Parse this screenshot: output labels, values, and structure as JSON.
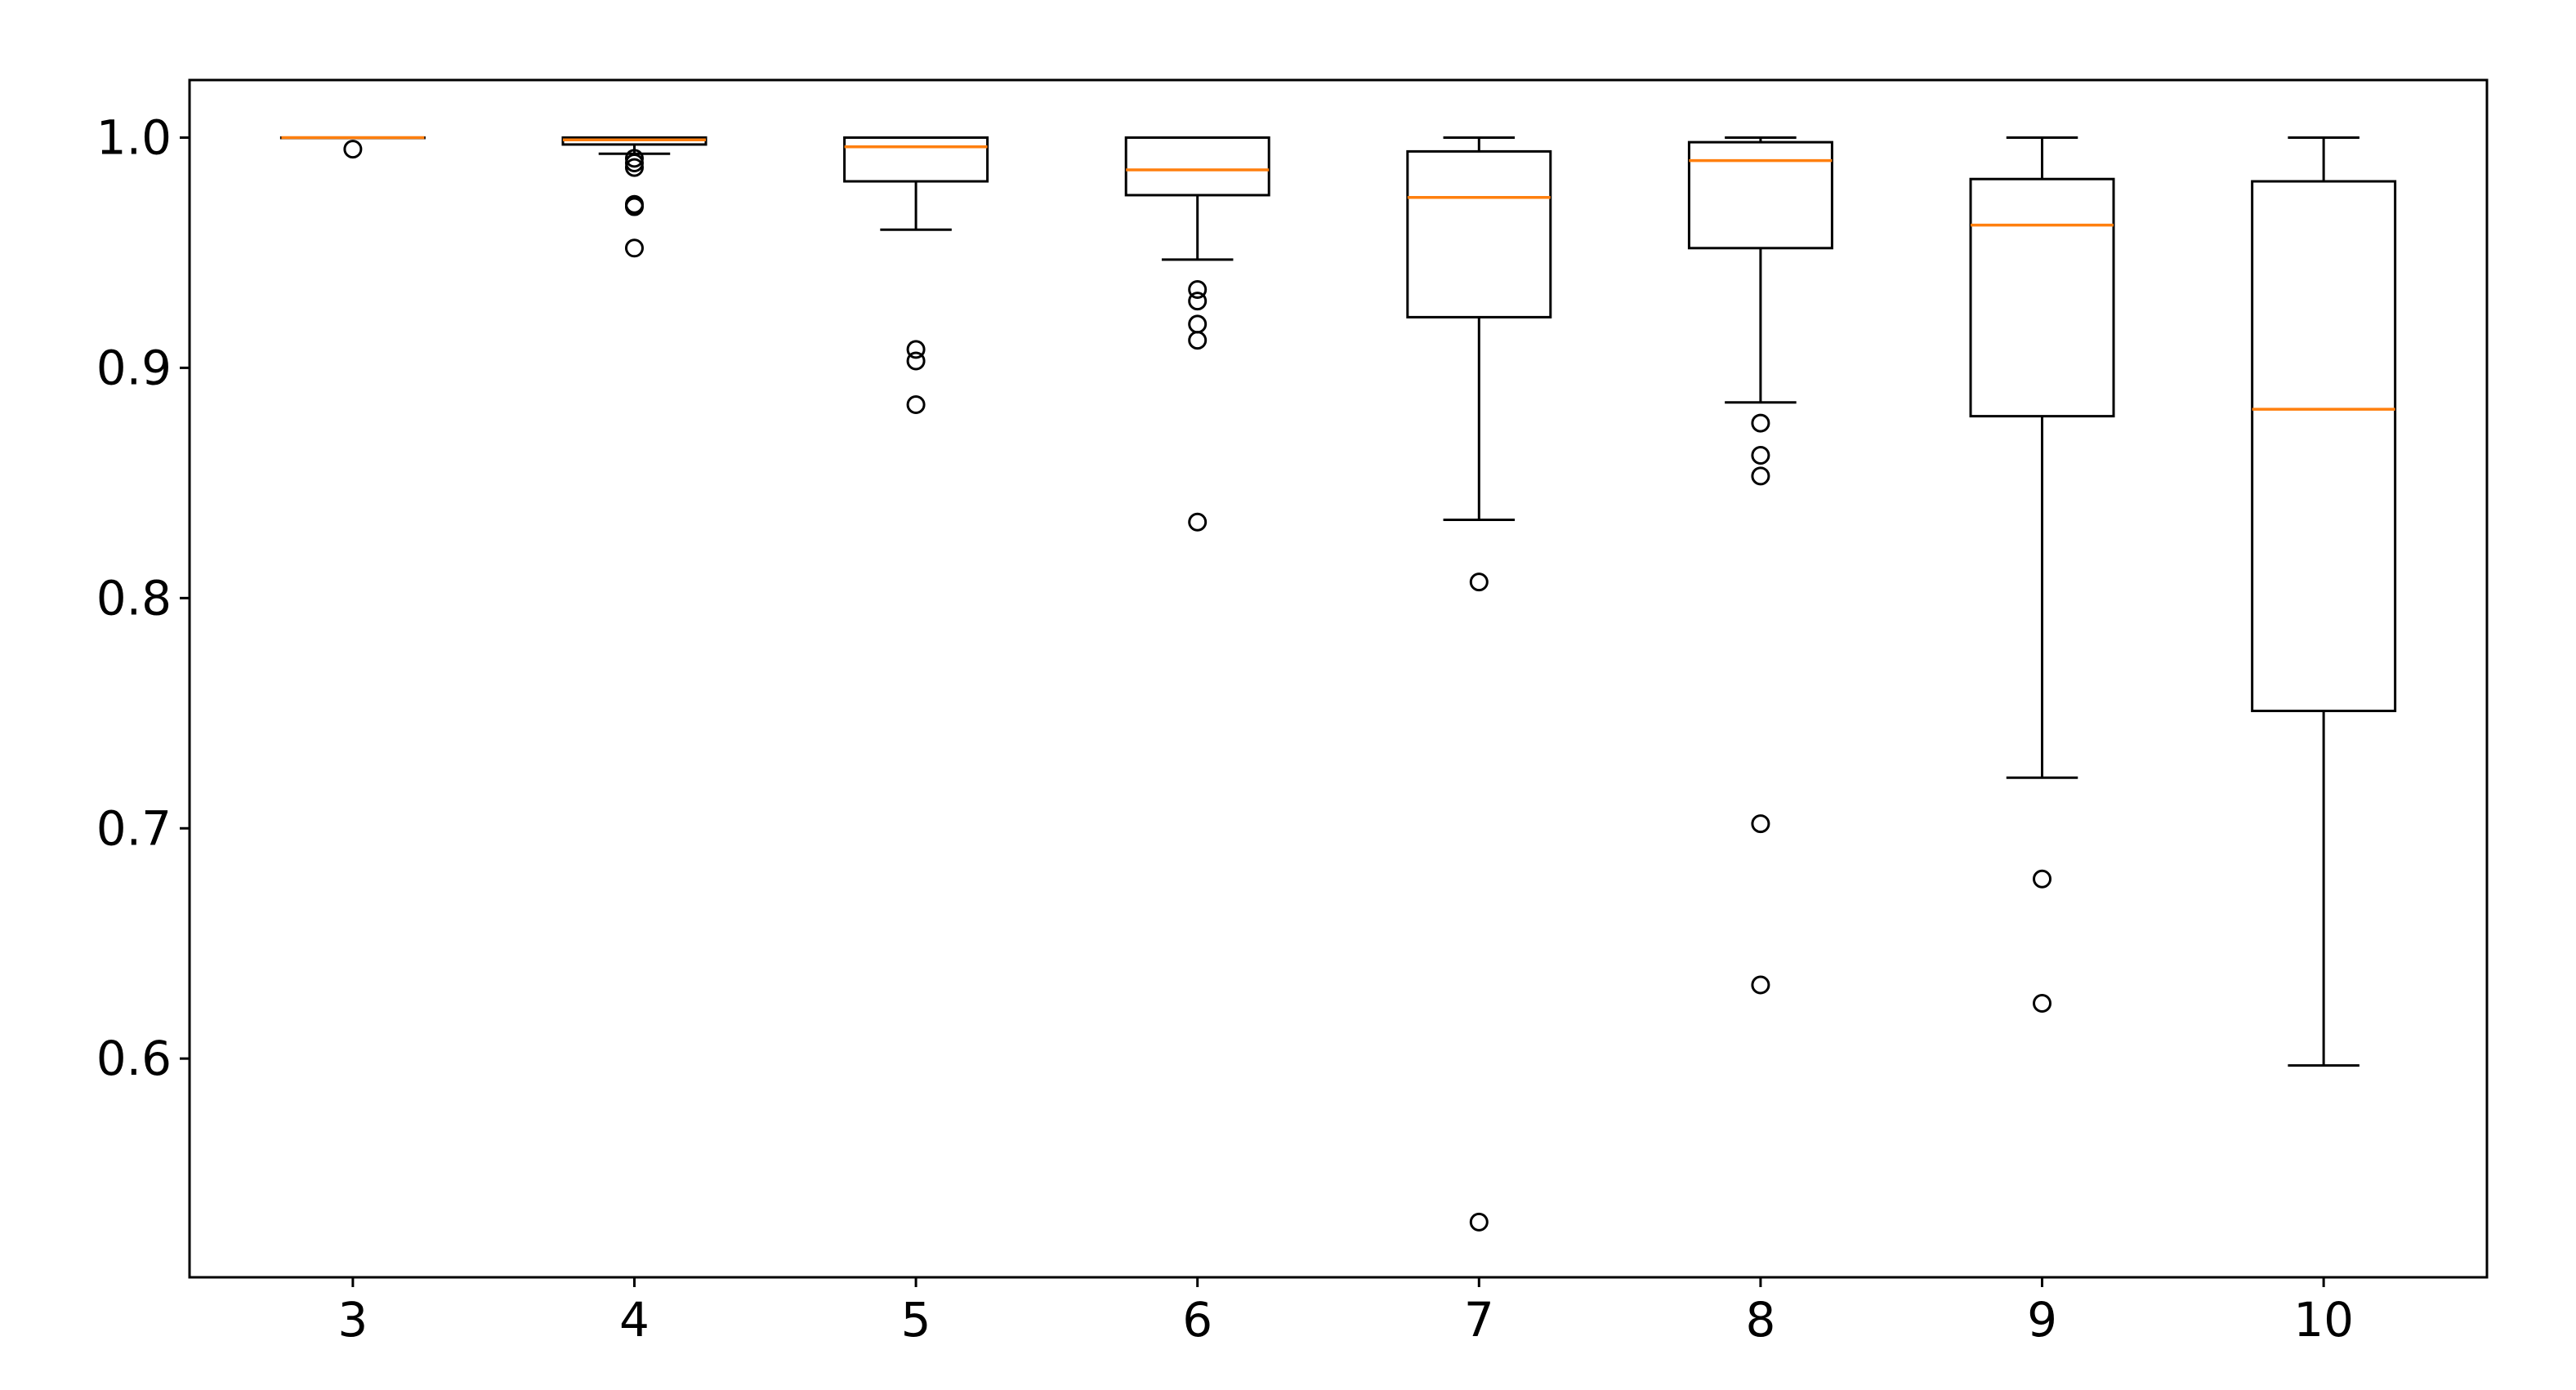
{
  "chart_data": {
    "type": "box",
    "title": "",
    "xlabel": "",
    "ylabel": "",
    "ylim": [
      0.505,
      1.025
    ],
    "yticks": [
      "0.6",
      "0.7",
      "0.8",
      "0.9",
      "1.0"
    ],
    "categories": [
      "3",
      "4",
      "5",
      "6",
      "7",
      "8",
      "9",
      "10"
    ],
    "grid": false,
    "colors": {
      "box": "#000000",
      "median": "#ff7f0e",
      "frame": "#000000"
    },
    "boxes": [
      {
        "category": "3",
        "whisker_low": 1.0,
        "q1": 1.0,
        "median": 1.0,
        "q3": 1.0,
        "whisker_high": 1.0,
        "outliers": [
          0.995
        ]
      },
      {
        "category": "4",
        "whisker_low": 0.993,
        "q1": 0.997,
        "median": 0.999,
        "q3": 1.0,
        "whisker_high": 1.0,
        "outliers": [
          0.991,
          0.989,
          0.987,
          0.971,
          0.97,
          0.952
        ]
      },
      {
        "category": "5",
        "whisker_low": 0.96,
        "q1": 0.981,
        "median": 0.996,
        "q3": 1.0,
        "whisker_high": 1.0,
        "outliers": [
          0.908,
          0.903,
          0.884
        ]
      },
      {
        "category": "6",
        "whisker_low": 0.947,
        "q1": 0.975,
        "median": 0.986,
        "q3": 1.0,
        "whisker_high": 1.0,
        "outliers": [
          0.934,
          0.929,
          0.919,
          0.912,
          0.833
        ]
      },
      {
        "category": "7",
        "whisker_low": 0.834,
        "q1": 0.922,
        "median": 0.974,
        "q3": 0.994,
        "whisker_high": 1.0,
        "outliers": [
          0.807,
          0.529
        ]
      },
      {
        "category": "8",
        "whisker_low": 0.885,
        "q1": 0.952,
        "median": 0.99,
        "q3": 0.998,
        "whisker_high": 1.0,
        "outliers": [
          0.876,
          0.862,
          0.853,
          0.702,
          0.632
        ]
      },
      {
        "category": "9",
        "whisker_low": 0.722,
        "q1": 0.879,
        "median": 0.962,
        "q3": 0.982,
        "whisker_high": 1.0,
        "outliers": [
          0.678,
          0.624
        ]
      },
      {
        "category": "10",
        "whisker_low": 0.597,
        "q1": 0.751,
        "median": 0.882,
        "q3": 0.981,
        "whisker_high": 1.0,
        "outliers": []
      }
    ]
  }
}
